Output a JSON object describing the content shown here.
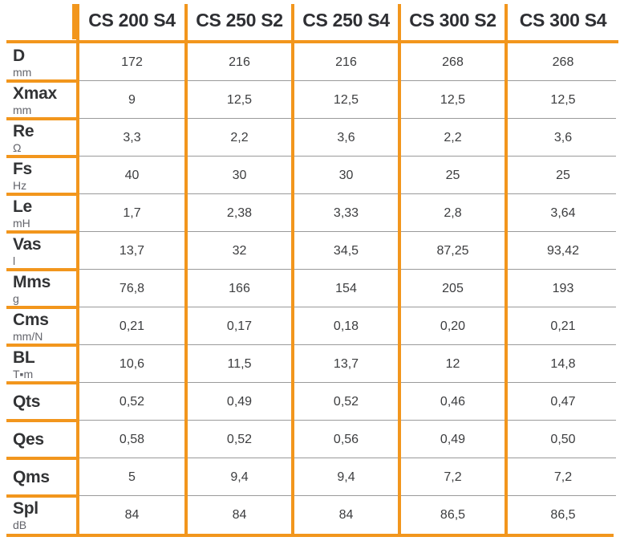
{
  "table": {
    "columns": [
      "CS 200 S4",
      "CS 250 S2",
      "CS 250 S4",
      "CS 300 S2",
      "CS 300 S4"
    ],
    "rows": [
      {
        "param": "D",
        "unit": "mm",
        "values": [
          "172",
          "216",
          "216",
          "268",
          "268"
        ]
      },
      {
        "param": "Xmax",
        "unit": "mm",
        "values": [
          "9",
          "12,5",
          "12,5",
          "12,5",
          "12,5"
        ]
      },
      {
        "param": "Re",
        "unit": "Ω",
        "values": [
          "3,3",
          "2,2",
          "3,6",
          "2,2",
          "3,6"
        ]
      },
      {
        "param": "Fs",
        "unit": "Hz",
        "values": [
          "40",
          "30",
          "30",
          "25",
          "25"
        ]
      },
      {
        "param": "Le",
        "unit": "mH",
        "values": [
          "1,7",
          "2,38",
          "3,33",
          "2,8",
          "3,64"
        ]
      },
      {
        "param": "Vas",
        "unit": "l",
        "values": [
          "13,7",
          "32",
          "34,5",
          "87,25",
          "93,42"
        ]
      },
      {
        "param": "Mms",
        "unit": "g",
        "values": [
          "76,8",
          "166",
          "154",
          "205",
          "193"
        ]
      },
      {
        "param": "Cms",
        "unit": "mm/N",
        "values": [
          "0,21",
          "0,17",
          "0,18",
          "0,20",
          "0,21"
        ]
      },
      {
        "param": "BL",
        "unit": "T▪m",
        "values": [
          "10,6",
          "11,5",
          "13,7",
          "12",
          "14,8"
        ]
      },
      {
        "param": "Qts",
        "unit": "",
        "values": [
          "0,52",
          "0,49",
          "0,52",
          "0,46",
          "0,47"
        ]
      },
      {
        "param": "Qes",
        "unit": "",
        "values": [
          "0,58",
          "0,52",
          "0,56",
          "0,49",
          "0,50"
        ]
      },
      {
        "param": "Qms",
        "unit": "",
        "values": [
          "5",
          "9,4",
          "9,4",
          "7,2",
          "7,2"
        ]
      },
      {
        "param": "Spl",
        "unit": "dB",
        "values": [
          "84",
          "84",
          "84",
          "86,5",
          "86,5"
        ]
      }
    ],
    "colors": {
      "accent_orange": "#f2961d",
      "grid_gray": "#9a9a9a",
      "label_text": "#323335",
      "unit_text": "#63646b",
      "value_text": "#3c3d3f"
    }
  }
}
